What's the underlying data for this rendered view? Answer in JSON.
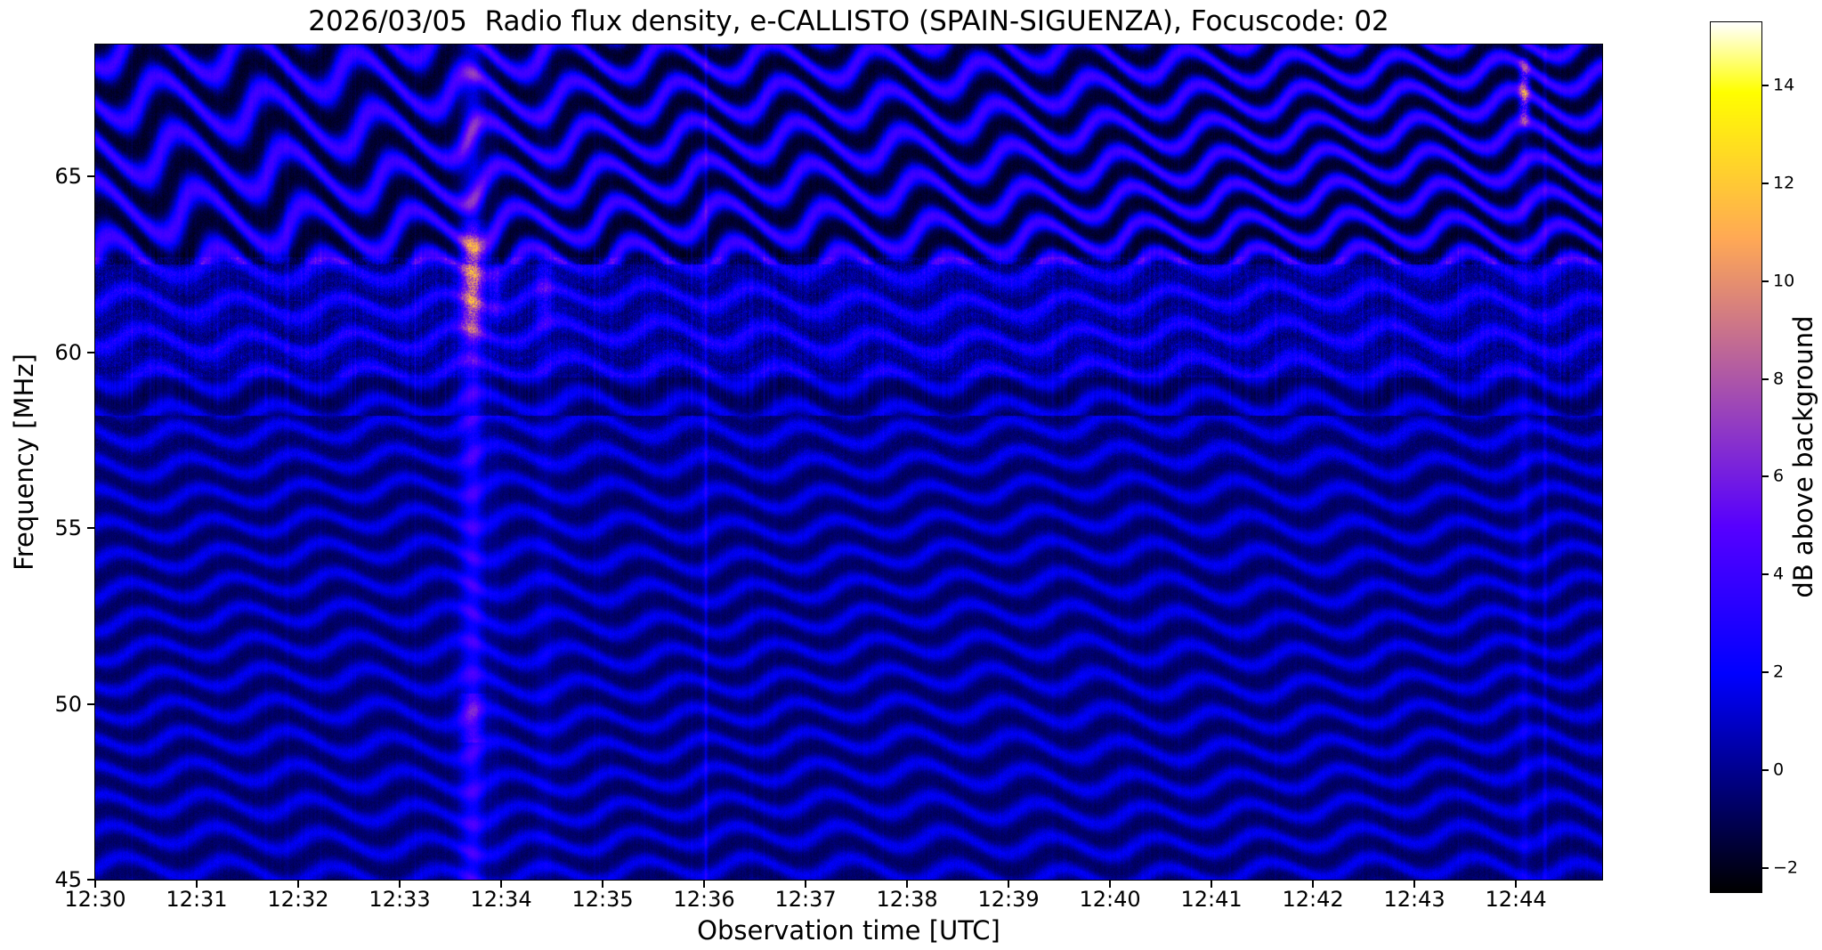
{
  "chart_data": {
    "type": "heatmap",
    "title": "2026/03/05  Radio flux density, e-CALLISTO (SPAIN-SIGUENZA), Focuscode: 02",
    "xlabel": "Observation time [UTC]",
    "ylabel": "Frequency [MHz]",
    "meta": {
      "date": "2026/03/05",
      "instrument": "e-CALLISTO",
      "station": "SPAIN-SIGUENZA",
      "focuscode": "02",
      "quantity": "Radio flux density"
    },
    "x_ticks": [
      "12:30",
      "12:31",
      "12:32",
      "12:33",
      "12:34",
      "12:35",
      "12:36",
      "12:37",
      "12:38",
      "12:39",
      "12:40",
      "12:41",
      "12:42",
      "12:43",
      "12:44"
    ],
    "x_tick_positions_min": [
      0,
      1,
      2,
      3,
      4,
      5,
      6,
      7,
      8,
      9,
      10,
      11,
      12,
      13,
      14
    ],
    "x_range_min": [
      0,
      14.85
    ],
    "y_tick_labels": [
      "65",
      "60",
      "55",
      "50",
      "45"
    ],
    "y_tick_values": [
      65,
      60,
      55,
      50,
      45
    ],
    "y_range": [
      45,
      68.75
    ],
    "grid": false,
    "colorbar": {
      "label": "dB above background",
      "tick_labels": [
        "14",
        "12",
        "10",
        "8",
        "6",
        "4",
        "2",
        "0",
        "−2"
      ],
      "tick_values": [
        14,
        12,
        10,
        8,
        6,
        4,
        2,
        0,
        -2
      ],
      "range": [
        -2.5,
        15.3
      ],
      "colormap": "gnuplot2 (black → blue → violet → pink → orange → yellow → white)",
      "position": "right"
    },
    "render_model": {
      "description": "Spectrogram dominated by wavy horizontal interference fringes on dark-blue background; strong widely-spaced fringes with black gaps above ~62.5 MHz; speckled RFI band near 59.5–62.5 MHz; bright vertical burst at ~12:33.7 with pink/orange core near 61–63 MHz; faint vertical line at ~12:36; pink/orange streak near 12:44.5 at 66.5–68 MHz.",
      "regions": [
        {
          "f_min": 62.5,
          "f_max": 68.75,
          "spacing_mhz": 1.55,
          "amplitude_db": 5.8,
          "base_db": -1.7,
          "wiggle": 0.45
        },
        {
          "f_min": 58.2,
          "f_max": 62.5,
          "spacing_mhz": 1.02,
          "amplitude_db": 2.7,
          "base_db": -0.9,
          "wiggle": 0.3
        },
        {
          "f_min": 45.0,
          "f_max": 58.2,
          "spacing_mhz": 0.9,
          "amplitude_db": 2.4,
          "base_db": -0.75,
          "wiggle": 0.3
        }
      ],
      "wiggle_cycles_per_span": 14.5,
      "rfi_band": [
        59.3,
        62.7
      ],
      "features": [
        {
          "name": "strong-burst-12:33.7",
          "t": 0.25,
          "width": 0.0077,
          "boost": 3.0,
          "hot_f": [
            60.2,
            63.8
          ],
          "hot_boost": 8.0,
          "secondary_f": [
            48.9,
            50.3
          ],
          "secondary_boost": 2.5
        },
        {
          "name": "rfi-patch-12:34.0",
          "t": 0.266,
          "width": 0.004,
          "boost": 0.5,
          "hot_f": [
            60.8,
            62.6
          ],
          "hot_boost": 3.0
        },
        {
          "name": "rfi-patch-12:34.5",
          "t": 0.298,
          "width": 0.006,
          "boost": 0.6,
          "hot_f": [
            60.6,
            62.8
          ],
          "hot_boost": 3.2
        },
        {
          "name": "faint-vertical-line-12:36",
          "t": 0.405,
          "width": 0.0012,
          "boost": 1.8
        },
        {
          "name": "burst-streak-12:44.5",
          "t": 0.948,
          "width": 0.0035,
          "boost": 1.0,
          "hot_f": [
            66.4,
            68.4
          ],
          "hot_boost": 8.5
        },
        {
          "name": "faint-vertical-line-12:44.6",
          "t": 0.962,
          "width": 0.0012,
          "boost": 1.2
        }
      ]
    }
  }
}
